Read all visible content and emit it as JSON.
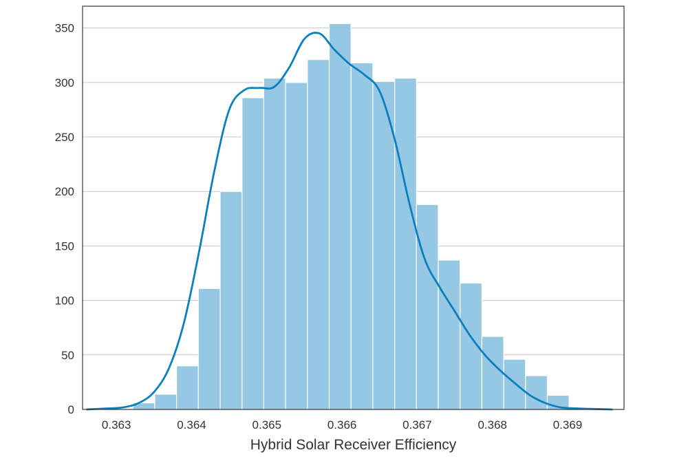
{
  "chart_data": {
    "type": "bar",
    "subtype": "histogram_with_kde",
    "title": "",
    "xlabel": "Hybrid Solar Receiver Efficiency",
    "ylabel": "",
    "xlim": [
      0.36255,
      0.36975
    ],
    "ylim": [
      0,
      370
    ],
    "grid": "horizontal",
    "bin_width": 0.00029,
    "bins": [
      {
        "x0": 0.36322,
        "count": 6
      },
      {
        "x0": 0.36351,
        "count": 14
      },
      {
        "x0": 0.3638,
        "count": 40
      },
      {
        "x0": 0.36409,
        "count": 111
      },
      {
        "x0": 0.36438,
        "count": 200
      },
      {
        "x0": 0.36467,
        "count": 286
      },
      {
        "x0": 0.36496,
        "count": 304
      },
      {
        "x0": 0.36525,
        "count": 300
      },
      {
        "x0": 0.36554,
        "count": 321
      },
      {
        "x0": 0.36583,
        "count": 354
      },
      {
        "x0": 0.36612,
        "count": 318
      },
      {
        "x0": 0.36641,
        "count": 301
      },
      {
        "x0": 0.3667,
        "count": 304
      },
      {
        "x0": 0.36699,
        "count": 188
      },
      {
        "x0": 0.36728,
        "count": 137
      },
      {
        "x0": 0.36757,
        "count": 116
      },
      {
        "x0": 0.36786,
        "count": 67
      },
      {
        "x0": 0.36815,
        "count": 46
      },
      {
        "x0": 0.36844,
        "count": 31
      },
      {
        "x0": 0.36873,
        "count": 13
      }
    ],
    "kde": {
      "x": [
        0.3626,
        0.3629,
        0.3631,
        0.3633,
        0.3635,
        0.3637,
        0.3639,
        0.3641,
        0.3643,
        0.3645,
        0.3647,
        0.3649,
        0.3651,
        0.3653,
        0.3655,
        0.3657,
        0.3659,
        0.3661,
        0.3663,
        0.3665,
        0.3667,
        0.3669,
        0.3671,
        0.3673,
        0.3675,
        0.3677,
        0.3679,
        0.3681,
        0.3683,
        0.3685,
        0.3687,
        0.3689,
        0.3691,
        0.3693,
        0.3696
      ],
      "y": [
        0,
        1,
        2,
        6,
        16,
        38,
        80,
        145,
        218,
        275,
        293,
        295,
        296,
        314,
        340,
        345,
        330,
        317,
        307,
        292,
        248,
        188,
        138,
        112,
        90,
        68,
        50,
        36,
        24,
        13,
        6,
        2,
        1,
        0.5,
        0
      ]
    },
    "x_ticks": [
      0.363,
      0.364,
      0.365,
      0.366,
      0.367,
      0.368,
      0.369
    ],
    "x_tick_labels": [
      "0.363",
      "0.364",
      "0.365",
      "0.366",
      "0.367",
      "0.368",
      "0.369"
    ],
    "y_ticks": [
      0,
      50,
      100,
      150,
      200,
      250,
      300,
      350
    ],
    "y_tick_labels": [
      "0",
      "50",
      "100",
      "150",
      "200",
      "250",
      "300",
      "350"
    ],
    "colors": {
      "bar_fill": "#96c8e3",
      "bar_edge": "#ffffff",
      "kde_line": "#0a7fbd",
      "grid": "#c8c8c8",
      "frame": "#333333"
    }
  }
}
